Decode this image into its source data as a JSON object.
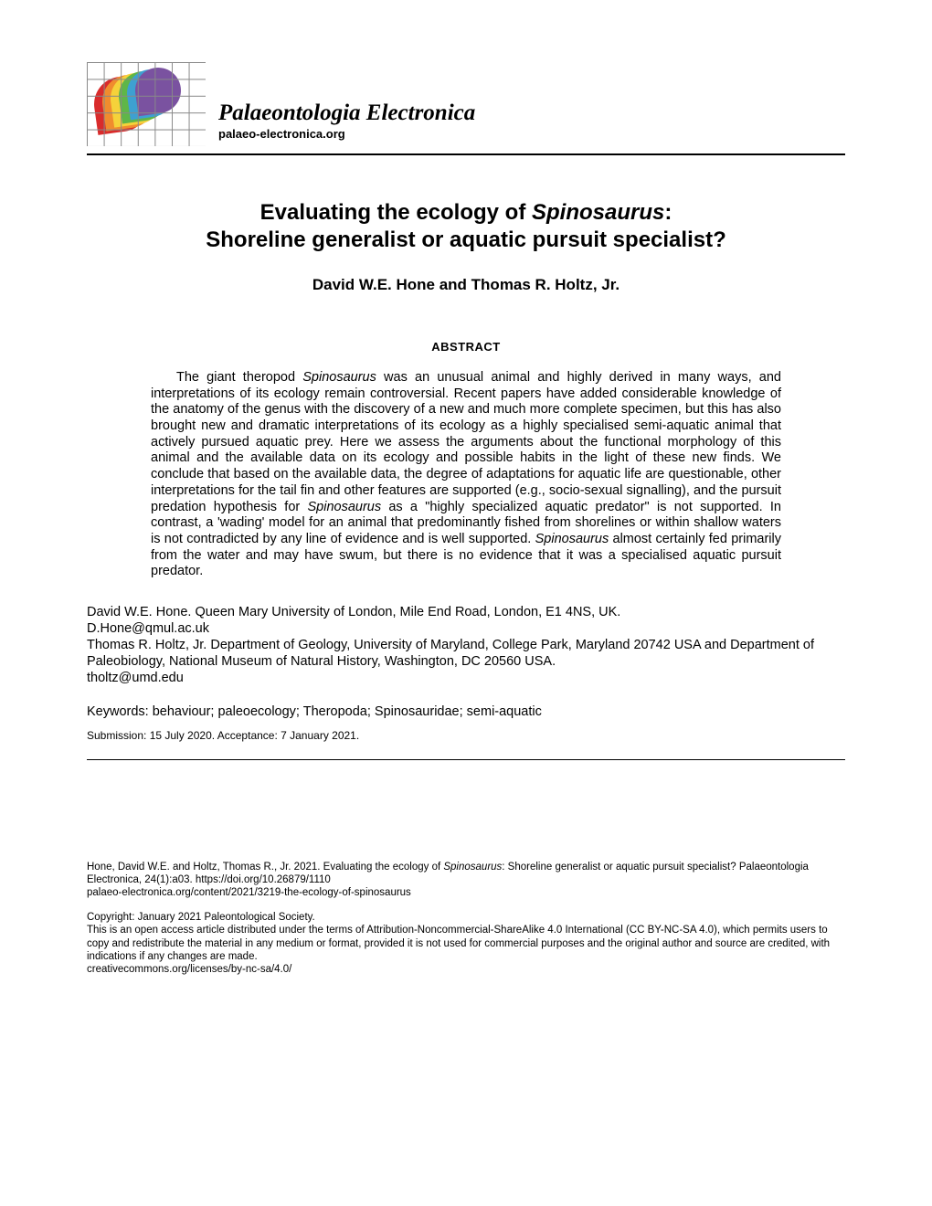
{
  "journal": {
    "name": "Palaeontologia Electronica",
    "url": "palaeo-electronica.org"
  },
  "title": {
    "line1_pre": "Evaluating the ecology of ",
    "line1_ital": "Spinosaurus",
    "line1_post": ":",
    "line2": "Shoreline generalist or aquatic pursuit specialist?"
  },
  "authors": "David W.E. Hone and Thomas R. Holtz, Jr.",
  "abstract": {
    "heading": "ABSTRACT",
    "seg1": "The giant theropod ",
    "ital1": "Spinosaurus",
    "seg2": " was an unusual animal and highly derived in many ways, and interpretations of its ecology remain controversial. Recent papers have added considerable knowledge of the anatomy of the genus with the discovery of a new and much more complete specimen, but this has also brought new and dramatic interpretations of its ecology as a highly specialised semi-aquatic animal that actively pursued aquatic prey. Here we assess the arguments about the functional morphology of this animal and the available data on its ecology and possible habits in the light of these new finds. We conclude that based on the available data, the degree of adaptations for aquatic life are questionable, other interpretations for the tail fin and other features are supported (e.g., socio-sexual signalling), and the pursuit predation hypothesis for ",
    "ital2": "Spinosaurus",
    "seg3": " as a \"highly specialized aquatic predator\" is not supported. In contrast, a 'wading' model for an animal that predominantly fished from shorelines or within shallow waters is not contradicted by any line of evidence and is well supported. ",
    "ital3": "Spinosaurus",
    "seg4": " almost certainly fed primarily from the water and may have swum, but there is no evidence that it was a specialised aquatic pursuit predator."
  },
  "affiliations": {
    "a1": "David W.E. Hone. Queen Mary University of London, Mile End Road, London, E1 4NS, UK.",
    "a1_email": "D.Hone@qmul.ac.uk",
    "a2": "Thomas R. Holtz, Jr. Department of Geology, University of Maryland, College Park, Maryland 20742 USA and Department of Paleobiology, National Museum of Natural History, Washington, DC 20560 USA.",
    "a2_email": "tholtz@umd.edu"
  },
  "keywords": "Keywords: behaviour; paleoecology; Theropoda; Spinosauridae; semi-aquatic",
  "submission": "Submission: 15 July 2020. Acceptance: 7 January 2021.",
  "footer": {
    "cite_seg1": "Hone, David W.E. and Holtz, Thomas R., Jr. 2021. Evaluating the ecology of ",
    "cite_ital": "Spinosaurus",
    "cite_seg2": ": Shoreline generalist or aquatic pursuit specialist? Palaeontologia Electronica, 24(1):a03. https://doi.org/10.26879/1110",
    "cite_url": "palaeo-electronica.org/content/2021/3219-the-ecology-of-spinosaurus",
    "copyright": "Copyright: January 2021 Paleontological Society.",
    "license": "This is an open access article distributed under the terms of Attribution-Noncommercial-ShareAlike 4.0 International (CC BY-NC-SA 4.0), which permits users to copy and redistribute the material in any medium or format, provided it is not used for commercial purposes and the original author and source are credited, with indications if any changes are made.",
    "license_url": "creativecommons.org/licenses/by-nc-sa/4.0/"
  },
  "colors": {
    "text": "#000000",
    "bg": "#ffffff",
    "rule": "#000000"
  },
  "fontsizes": {
    "journal_name": 25,
    "journal_url": 13,
    "title": 24,
    "authors": 17,
    "abstract_head": 13,
    "body": 14.5,
    "submission": 12,
    "footer": 11.5
  }
}
